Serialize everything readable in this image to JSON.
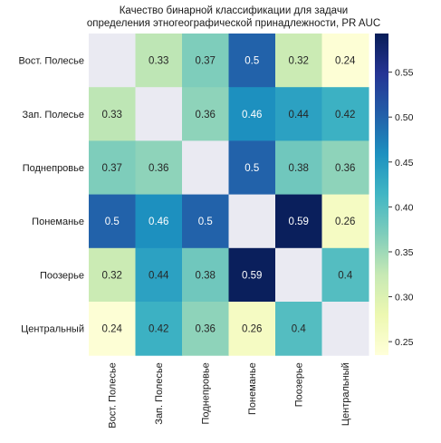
{
  "chart_data": {
    "type": "heatmap",
    "title": "Качество бинарной классификации для задачи",
    "subtitle": "определения этногеографической принадлежности, PR AUC",
    "rows": [
      "Вост. Полесье",
      "Зап. Полесье",
      "Поднепровье",
      "Понеманье",
      "Поозерье",
      "Центральный"
    ],
    "columns": [
      "Вост. Полесье",
      "Зап. Полесье",
      "Поднепровье",
      "Понеманье",
      "Поозерье",
      "Центральный"
    ],
    "values": [
      [
        null,
        0.33,
        0.37,
        0.5,
        0.32,
        0.24
      ],
      [
        0.33,
        null,
        0.36,
        0.46,
        0.44,
        0.42
      ],
      [
        0.37,
        0.36,
        null,
        0.5,
        0.38,
        0.36
      ],
      [
        0.5,
        0.46,
        0.5,
        null,
        0.59,
        0.26
      ],
      [
        0.32,
        0.44,
        0.38,
        0.59,
        null,
        0.4
      ],
      [
        0.24,
        0.42,
        0.36,
        0.26,
        0.4,
        null
      ]
    ],
    "labels": [
      [
        "",
        "0.33",
        "0.37",
        "0.5",
        "0.32",
        "0.24"
      ],
      [
        "0.33",
        "",
        "0.36",
        "0.46",
        "0.44",
        "0.42"
      ],
      [
        "0.37",
        "0.36",
        "",
        "0.5",
        "0.38",
        "0.36"
      ],
      [
        "0.5",
        "0.46",
        "0.5",
        "",
        "0.59",
        "0.26"
      ],
      [
        "0.32",
        "0.44",
        "0.38",
        "0.59",
        "",
        "0.4"
      ],
      [
        "0.24",
        "0.42",
        "0.36",
        "0.26",
        "0.4",
        ""
      ]
    ],
    "colormap": "YlGnBu",
    "missing_color": "#eaeaf2",
    "colorbar": {
      "range": [
        0.235,
        0.593
      ],
      "ticks": [
        0.25,
        0.3,
        0.35,
        0.4,
        0.45,
        0.5,
        0.55
      ],
      "tick_labels": [
        "0.25",
        "0.30",
        "0.35",
        "0.40",
        "0.45",
        "0.50",
        "0.55"
      ]
    }
  }
}
